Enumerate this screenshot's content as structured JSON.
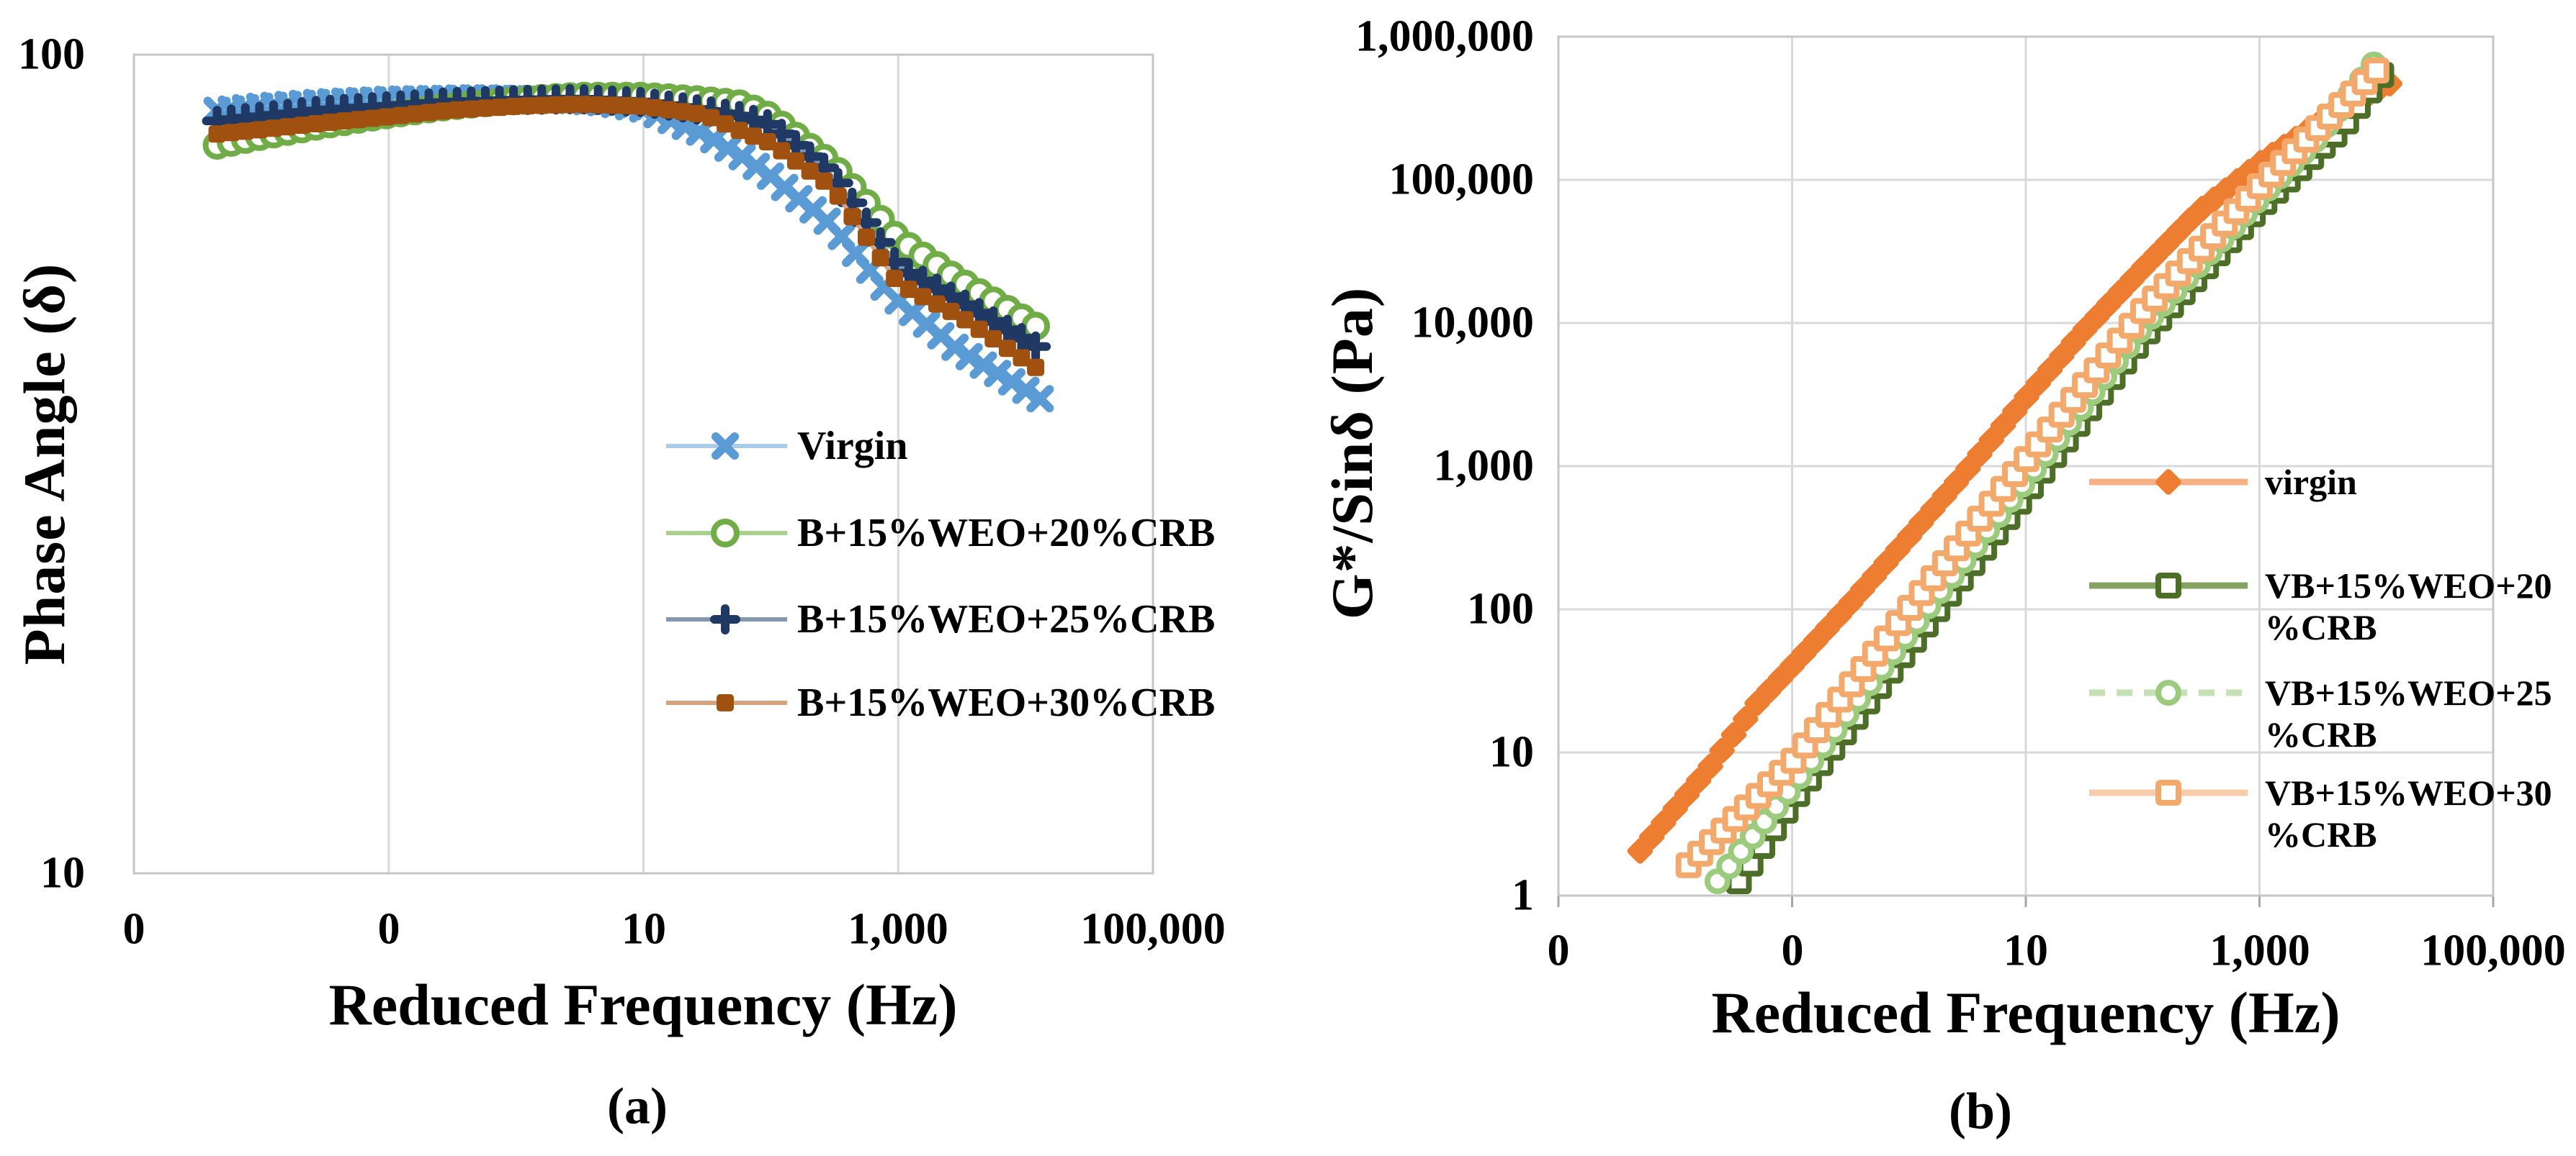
{
  "figure": {
    "background": "#FFFFFF",
    "text_color": "#000000",
    "grid_color": "#D9D9D9",
    "border_color": "#C6C6C6",
    "tick_color": "#A6A6A6"
  },
  "chart_data": [
    {
      "id": "a",
      "type": "scatter",
      "caption": "(a)",
      "x_axis": {
        "label": "Reduced Frequency (Hz)",
        "scale": "log",
        "min": 0.001,
        "max": 100000,
        "tick_values": [
          0.001,
          0.1,
          10,
          1000,
          100000
        ],
        "tick_labels": [
          "0",
          "0",
          "10",
          "1,000",
          "100,000"
        ]
      },
      "y_axis": {
        "label": "Phase Angle (δ)",
        "scale": "log",
        "min": 10,
        "max": 100,
        "tick_values": [
          100,
          10
        ],
        "tick_labels": [
          "100",
          "10"
        ]
      },
      "legend_position": "inside-right",
      "series": [
        {
          "name": "Virgin",
          "legend_lines": [
            "Virgin"
          ],
          "marker": "x",
          "marker_size": 13,
          "color": "#5B9BD5",
          "line_color": "#A8CCEA",
          "dash": "",
          "points": [
            [
              0.0045,
              85.5
            ],
            [
              0.01,
              86.5
            ],
            [
              0.03,
              87.5
            ],
            [
              0.1,
              88.2
            ],
            [
              0.5,
              88.6
            ],
            [
              2,
              88.2
            ],
            [
              5,
              87.3
            ],
            [
              10,
              85.8
            ],
            [
              30,
              80
            ],
            [
              60,
              75
            ],
            [
              100,
              71
            ],
            [
              300,
              62
            ],
            [
              860,
              51
            ],
            [
              3000,
              43.5
            ],
            [
              13000,
              38
            ]
          ]
        },
        {
          "name": "B+15%WEO+20%CRB",
          "legend_lines": [
            "B+15%WEO+20%CRB"
          ],
          "marker": "circle-open",
          "marker_size": 16,
          "color": "#70AD47",
          "line_color": "#A9D18E",
          "dash": "",
          "points": [
            [
              0.0045,
              77.5
            ],
            [
              0.01,
              79.5
            ],
            [
              0.03,
              82
            ],
            [
              0.1,
              84.5
            ],
            [
              0.3,
              86.5
            ],
            [
              1,
              88
            ],
            [
              3,
              89
            ],
            [
              10,
              89
            ],
            [
              30,
              88
            ],
            [
              60,
              87
            ],
            [
              100,
              84
            ],
            [
              300,
              73.5
            ],
            [
              1000,
              59.5
            ],
            [
              3000,
              53
            ],
            [
              12000,
              46.6
            ]
          ]
        },
        {
          "name": "B+15%WEO+25%CRB",
          "legend_lines": [
            "B+15%WEO+25%CRB"
          ],
          "marker": "plus",
          "marker_size": 13,
          "color": "#1F3864",
          "line_color": "#8497B0",
          "dash": "",
          "points": [
            [
              0.0045,
              83
            ],
            [
              0.01,
              84
            ],
            [
              0.03,
              85.5
            ],
            [
              0.1,
              86.5
            ],
            [
              0.3,
              87.5
            ],
            [
              1,
              88
            ],
            [
              3,
              88.3
            ],
            [
              10,
              87.5
            ],
            [
              30,
              85.5
            ],
            [
              60,
              84
            ],
            [
              100,
              82
            ],
            [
              300,
              71.5
            ],
            [
              1000,
              55
            ],
            [
              3000,
              50
            ],
            [
              12000,
              44
            ]
          ]
        },
        {
          "name": "B+15%WEO+30%CRB",
          "legend_lines": [
            "B+15%WEO+30%CRB"
          ],
          "marker": "square-solid",
          "marker_size": 12,
          "color": "#A0500F",
          "line_color": "#D3A47F",
          "dash": "",
          "points": [
            [
              0.0045,
              80
            ],
            [
              0.01,
              81
            ],
            [
              0.03,
              82.5
            ],
            [
              0.1,
              84
            ],
            [
              0.3,
              85.5
            ],
            [
              1,
              86.5
            ],
            [
              3,
              87
            ],
            [
              10,
              86.5
            ],
            [
              30,
              84.5
            ],
            [
              60,
              80.5
            ],
            [
              100,
              78
            ],
            [
              300,
              69
            ],
            [
              1000,
              52.5
            ],
            [
              3000,
              48
            ],
            [
              12000,
              41.5
            ]
          ]
        }
      ]
    },
    {
      "id": "b",
      "type": "scatter",
      "caption": "(b)",
      "x_axis": {
        "label": "Reduced Frequency (Hz)",
        "scale": "log",
        "min": 0.001,
        "max": 100000,
        "tick_values": [
          0.001,
          0.1,
          10,
          1000,
          100000
        ],
        "tick_labels": [
          "0",
          "0",
          "10",
          "1,000",
          "100,000"
        ]
      },
      "y_axis": {
        "label": "G*/Sinδ (Pa)",
        "scale": "log",
        "min": 1,
        "max": 1000000,
        "tick_values": [
          1000000,
          100000,
          10000,
          1000,
          100,
          10,
          1
        ],
        "tick_labels": [
          "1,000,000",
          "100,000",
          "10,000",
          "1,000",
          "100",
          "10",
          "1"
        ]
      },
      "legend_position": "inside-right",
      "series": [
        {
          "name": "virgin",
          "legend_lines": [
            "virgin"
          ],
          "marker": "diamond-solid",
          "marker_size": 14,
          "color": "#ED7D31",
          "line_color": "#F5B183",
          "dash": "",
          "points": [
            [
              0.005,
              2.05
            ],
            [
              0.02,
              8
            ],
            [
              0.05,
              22
            ],
            [
              0.1,
              40
            ],
            [
              0.3,
              105
            ],
            [
              1,
              320
            ],
            [
              3,
              900
            ],
            [
              10,
              3000
            ],
            [
              30,
              8500
            ],
            [
              100,
              24000
            ],
            [
              300,
              60000
            ],
            [
              1000,
              130000
            ],
            [
              3000,
              240000
            ],
            [
              10000,
              420000
            ],
            [
              13000,
              470000
            ]
          ]
        },
        {
          "name": "VB+15%WEO+20%CRB",
          "legend_lines": [
            "VB+15%WEO+20",
            "%CRB"
          ],
          "marker": "square-open",
          "marker_size": 14,
          "color": "#4C6E27",
          "line_color": "#85A360",
          "dash": "",
          "points": [
            [
              0.035,
              1.26
            ],
            [
              0.1,
              4.6
            ],
            [
              1,
              55
            ],
            [
              10,
              650
            ],
            [
              100,
              8000
            ],
            [
              1000,
              65000
            ],
            [
              5000,
              230000
            ],
            [
              11000,
              540000
            ]
          ]
        },
        {
          "name": "VB+15%WEO+25%CRB",
          "legend_lines": [
            "VB+15%WEO+25",
            "%CRB"
          ],
          "marker": "circle-open",
          "marker_size": 14,
          "color": "#9CCB7E",
          "line_color": "#C5E0B4",
          "dash": "22 16",
          "points": [
            [
              0.023,
              1.26
            ],
            [
              0.1,
              5.8
            ],
            [
              1,
              70
            ],
            [
              10,
              800
            ],
            [
              100,
              9500
            ],
            [
              1000,
              75000
            ],
            [
              3000,
              190000
            ],
            [
              9500,
              640000
            ]
          ]
        },
        {
          "name": "VB+15%WEO+30%CRB",
          "legend_lines": [
            "VB+15%WEO+30",
            "%CRB"
          ],
          "marker": "square-open",
          "marker_size": 14,
          "color": "#F4A96C",
          "line_color": "#F8CBAD",
          "dash": "",
          "points": [
            [
              0.013,
              1.63
            ],
            [
              0.1,
              8.5
            ],
            [
              1,
              100
            ],
            [
              10,
              1100
            ],
            [
              100,
              12000
            ],
            [
              1000,
              90000
            ],
            [
              3000,
              220000
            ],
            [
              10000,
              580000
            ]
          ]
        }
      ]
    }
  ]
}
